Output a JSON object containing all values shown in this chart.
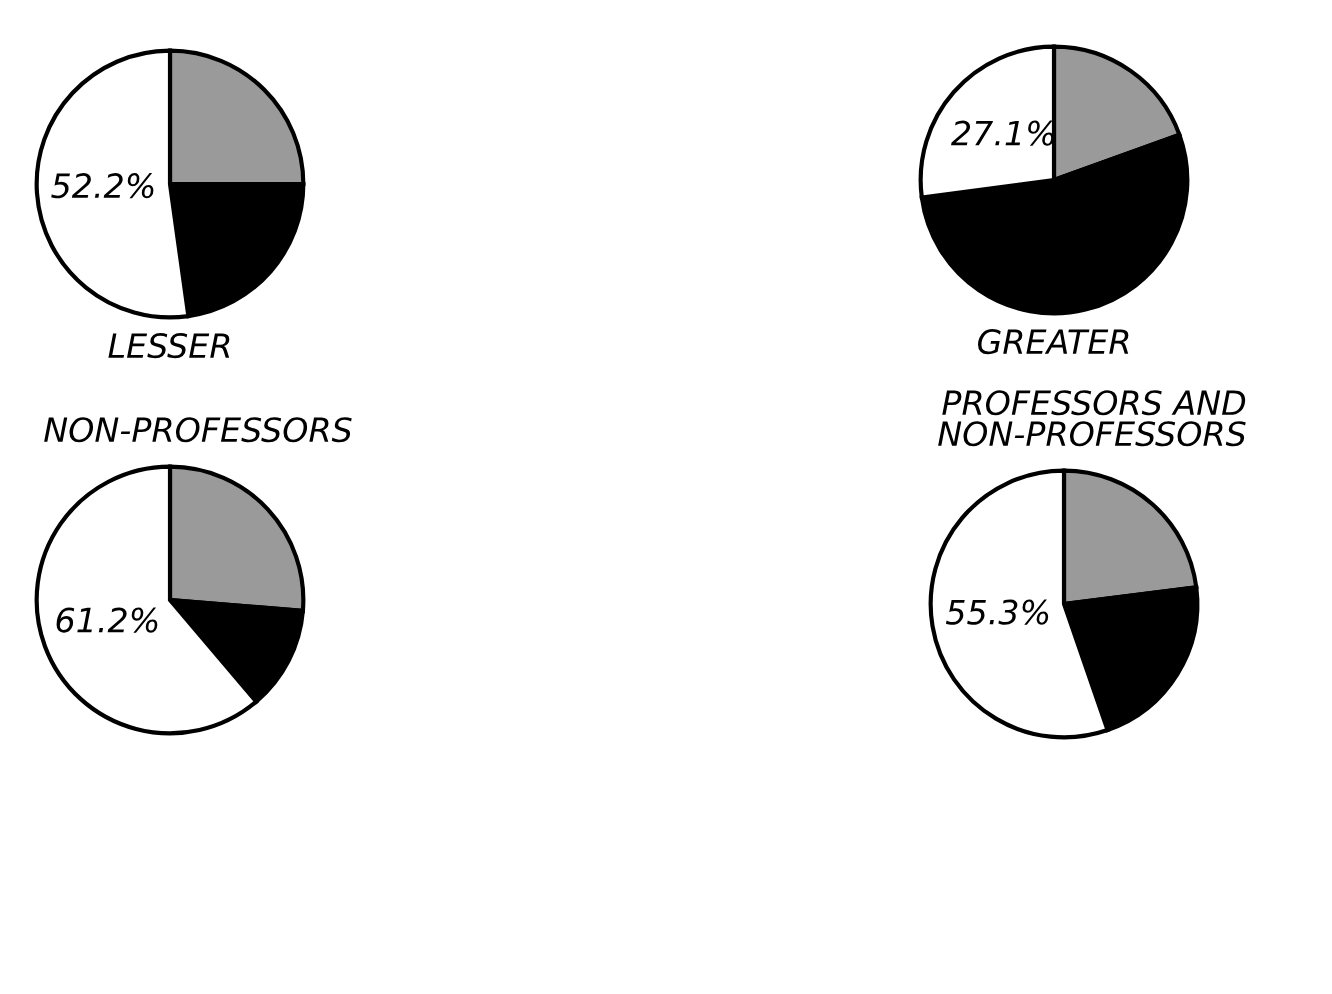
{
  "chart_data": [
    {
      "type": "pie",
      "xlabel": "LESSER",
      "categories": [
        null,
        null,
        null
      ],
      "values": [
        25.0,
        22.8,
        52.2
      ],
      "colors": [
        "#9a9a9a",
        "#000000",
        "#ffffff"
      ],
      "value_labels": [
        null,
        null,
        "52.2%"
      ]
    },
    {
      "type": "pie",
      "xlabel": "GREATER",
      "categories": [
        null,
        null,
        null
      ],
      "values": [
        19.5,
        53.4,
        27.1
      ],
      "colors": [
        "#9a9a9a",
        "#000000",
        "#ffffff"
      ],
      "value_labels": [
        null,
        null,
        "27.1%"
      ]
    },
    {
      "type": "pie",
      "title": "NON-PROFESSORS",
      "categories": [
        null,
        null,
        null
      ],
      "values": [
        26.3,
        12.5,
        61.2
      ],
      "colors": [
        "#9a9a9a",
        "#000000",
        "#ffffff"
      ],
      "value_labels": [
        null,
        null,
        "61.2%"
      ]
    },
    {
      "type": "pie",
      "title": "PROFESSORS AND\nNON-PROFESSORS",
      "categories": [
        null,
        null,
        null
      ],
      "values": [
        23.0,
        21.7,
        55.3
      ],
      "colors": [
        "#9a9a9a",
        "#000000",
        "#ffffff"
      ],
      "value_labels": [
        null,
        null,
        "55.3%"
      ]
    }
  ]
}
